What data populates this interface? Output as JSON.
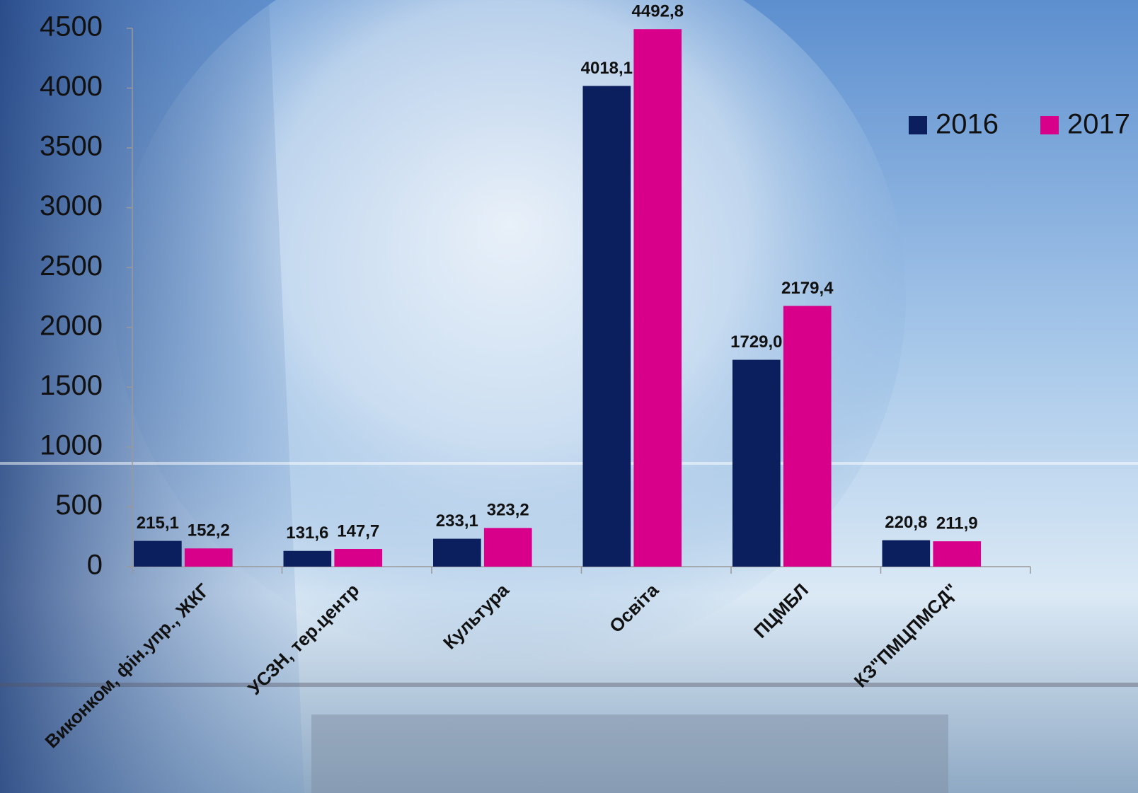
{
  "chart_data": {
    "type": "bar",
    "categories": [
      "Виконком, фін.упр., ЖКГ",
      "УСЗН, тер.центр",
      "Культура",
      "Освіта",
      "ПЦМБЛ",
      "КЗ\"ПМЦПМСД\""
    ],
    "series": [
      {
        "name": "2016",
        "color": "#0b1f5e",
        "values": [
          215.1,
          131.6,
          233.1,
          4018.1,
          1729.0,
          220.8
        ],
        "value_labels": [
          "215,1",
          "131,6",
          "233,1",
          "4018,1",
          "1729,0",
          "220,8"
        ]
      },
      {
        "name": "2017",
        "color": "#d8008a",
        "values": [
          152.2,
          147.7,
          323.2,
          4492.8,
          2179.4,
          211.9
        ],
        "value_labels": [
          "152,2",
          "147,7",
          "323,2",
          "4492,8",
          "2179,4",
          "211,9"
        ]
      }
    ],
    "ylim": [
      0,
      4500
    ],
    "yticks": [
      0,
      500,
      1000,
      1500,
      2000,
      2500,
      3000,
      3500,
      4000,
      4500
    ],
    "grid": false,
    "legend": "top-right"
  }
}
